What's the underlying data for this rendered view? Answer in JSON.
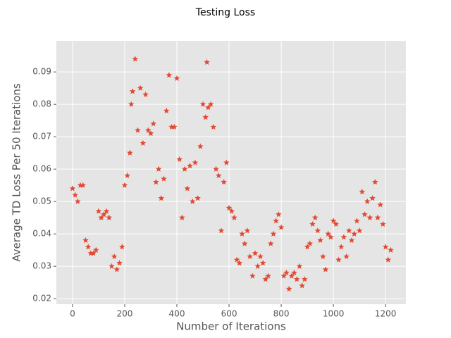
{
  "chart_data": {
    "type": "scatter",
    "title": "Testing Loss",
    "x_label": "Number of Iterations",
    "y_label": "Average TD Loss Per 50 Iterations",
    "xlim": [
      -62,
      1278
    ],
    "ylim": [
      0.0183,
      0.0996
    ],
    "xticks": [
      0,
      200,
      400,
      600,
      800,
      1000,
      1200
    ],
    "yticks": [
      0.02,
      0.03,
      0.04,
      0.05,
      0.06,
      0.07,
      0.08,
      0.09
    ],
    "grid": true,
    "background": "#e5e5e5",
    "color": "#e24a33",
    "marker": "star",
    "x": [
      0,
      10,
      20,
      30,
      40,
      50,
      60,
      70,
      80,
      90,
      100,
      110,
      120,
      130,
      140,
      150,
      160,
      170,
      180,
      190,
      200,
      210,
      220,
      225,
      230,
      240,
      250,
      260,
      270,
      280,
      290,
      300,
      310,
      320,
      330,
      340,
      350,
      360,
      370,
      380,
      390,
      400,
      410,
      420,
      430,
      440,
      450,
      460,
      470,
      480,
      490,
      500,
      510,
      515,
      520,
      530,
      540,
      550,
      560,
      570,
      580,
      590,
      600,
      610,
      620,
      630,
      640,
      650,
      660,
      670,
      680,
      690,
      700,
      710,
      720,
      730,
      740,
      750,
      760,
      770,
      780,
      790,
      800,
      810,
      820,
      830,
      840,
      850,
      860,
      870,
      880,
      890,
      900,
      910,
      920,
      930,
      940,
      950,
      960,
      970,
      980,
      990,
      1000,
      1010,
      1020,
      1030,
      1040,
      1050,
      1060,
      1070,
      1080,
      1090,
      1100,
      1110,
      1120,
      1130,
      1140,
      1150,
      1160,
      1170,
      1180,
      1190,
      1200,
      1210,
      1220
    ],
    "values": [
      0.054,
      0.052,
      0.05,
      0.055,
      0.055,
      0.038,
      0.036,
      0.034,
      0.034,
      0.035,
      0.047,
      0.045,
      0.046,
      0.047,
      0.045,
      0.03,
      0.033,
      0.029,
      0.031,
      0.036,
      0.055,
      0.058,
      0.065,
      0.08,
      0.084,
      0.094,
      0.072,
      0.085,
      0.068,
      0.083,
      0.072,
      0.071,
      0.074,
      0.056,
      0.06,
      0.051,
      0.057,
      0.078,
      0.089,
      0.073,
      0.073,
      0.088,
      0.063,
      0.045,
      0.06,
      0.054,
      0.061,
      0.05,
      0.062,
      0.051,
      0.067,
      0.08,
      0.076,
      0.093,
      0.079,
      0.08,
      0.073,
      0.06,
      0.058,
      0.041,
      0.056,
      0.062,
      0.048,
      0.047,
      0.045,
      0.032,
      0.031,
      0.04,
      0.037,
      0.041,
      0.033,
      0.027,
      0.034,
      0.03,
      0.033,
      0.031,
      0.026,
      0.027,
      0.037,
      0.04,
      0.044,
      0.046,
      0.042,
      0.027,
      0.028,
      0.023,
      0.027,
      0.028,
      0.026,
      0.03,
      0.024,
      0.026,
      0.036,
      0.037,
      0.043,
      0.045,
      0.041,
      0.038,
      0.033,
      0.029,
      0.04,
      0.039,
      0.044,
      0.043,
      0.032,
      0.036,
      0.039,
      0.033,
      0.041,
      0.038,
      0.04,
      0.044,
      0.041,
      0.053,
      0.046,
      0.05,
      0.045,
      0.051,
      0.056,
      0.045,
      0.049,
      0.043,
      0.036,
      0.032,
      0.035
    ]
  }
}
